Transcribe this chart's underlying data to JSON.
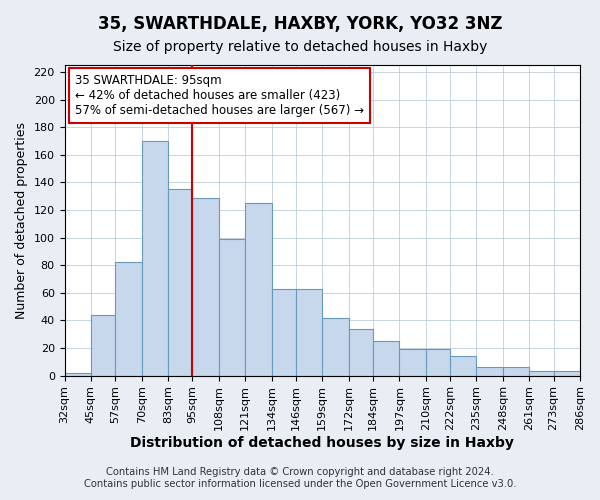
{
  "title": "35, SWARTHDALE, HAXBY, YORK, YO32 3NZ",
  "subtitle": "Size of property relative to detached houses in Haxby",
  "xlabel": "Distribution of detached houses by size in Haxby",
  "ylabel": "Number of detached properties",
  "footer_line1": "Contains HM Land Registry data © Crown copyright and database right 2024.",
  "footer_line2": "Contains public sector information licensed under the Open Government Licence v3.0.",
  "bin_labels": [
    "32sqm",
    "45sqm",
    "57sqm",
    "70sqm",
    "83sqm",
    "95sqm",
    "108sqm",
    "121sqm",
    "134sqm",
    "146sqm",
    "159sqm",
    "172sqm",
    "184sqm",
    "197sqm",
    "210sqm",
    "222sqm",
    "235sqm",
    "248sqm",
    "261sqm",
    "273sqm",
    "286sqm"
  ],
  "bin_edges": [
    32,
    45,
    57,
    70,
    83,
    95,
    108,
    121,
    134,
    146,
    159,
    172,
    184,
    197,
    210,
    222,
    235,
    248,
    261,
    273,
    286
  ],
  "bar_heights": [
    2,
    44,
    82,
    170,
    135,
    129,
    99,
    125,
    63,
    63,
    42,
    34,
    25,
    19,
    19,
    14,
    6,
    6,
    3,
    3
  ],
  "bar_color": "#c8d8ec",
  "bar_edge_color": "#6699bb",
  "annotation_line1": "35 SWARTHDALE: 95sqm",
  "annotation_line2": "← 42% of detached houses are smaller (423)",
  "annotation_line3": "57% of semi-detached houses are larger (567) →",
  "annotation_box_edge_color": "#cc0000",
  "vline_x": 95,
  "vline_color": "#cc0000",
  "ylim": [
    0,
    225
  ],
  "yticks": [
    0,
    20,
    40,
    60,
    80,
    100,
    120,
    140,
    160,
    180,
    200,
    220
  ],
  "background_color": "#e8eef4",
  "plot_bg_color": "#ffffff",
  "grid_color": "#b0c4d8",
  "title_fontsize": 12,
  "subtitle_fontsize": 10,
  "xlabel_fontsize": 10,
  "ylabel_fontsize": 9,
  "tick_fontsize": 8,
  "footer_fontsize": 7.2,
  "annotation_fontsize": 8.5
}
